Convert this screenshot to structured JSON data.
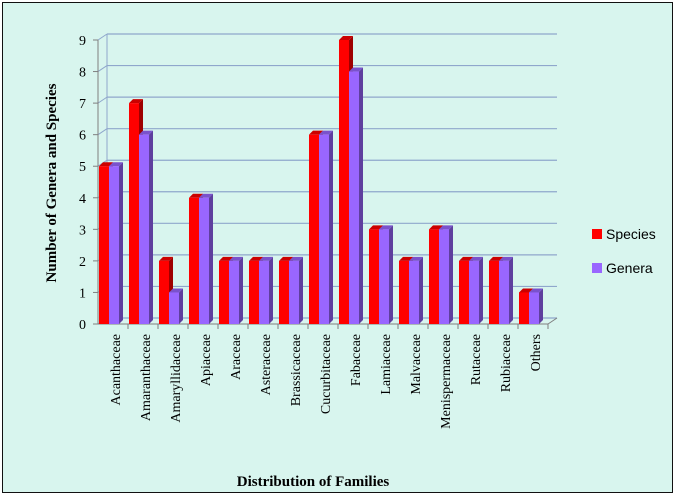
{
  "chart_data": {
    "type": "bar",
    "title": "",
    "xlabel": "Distribution of Families",
    "ylabel": "Number  of Genera and Species",
    "categories": [
      "Acanthaceae",
      "Amaranthaceae",
      "Amaryllidaceae",
      "Apiaceae",
      "Araceae",
      "Asteraceae",
      "Brassicaceae",
      "Cucurbitaceae",
      "Fabaceae",
      "Lamiaceae",
      "Malvaceae",
      "Menispermaceae",
      "Rutaceae",
      "Rubiaceae",
      "Others"
    ],
    "series": [
      {
        "name": "Species",
        "color": "#ff0000",
        "values": [
          5,
          7,
          2,
          4,
          2,
          2,
          2,
          6,
          9,
          3,
          2,
          3,
          2,
          2,
          1
        ]
      },
      {
        "name": "Genera",
        "color": "#9966ff",
        "values": [
          5,
          6,
          1,
          4,
          2,
          2,
          2,
          6,
          8,
          3,
          2,
          3,
          2,
          2,
          1
        ]
      }
    ],
    "ylim": [
      0,
      9
    ],
    "yticks": [
      "0",
      "1",
      "2",
      "3",
      "4",
      "5",
      "6",
      "7",
      "8",
      "9"
    ],
    "grid": true,
    "legend_position": "right",
    "style": "3d-clustered-bar"
  }
}
